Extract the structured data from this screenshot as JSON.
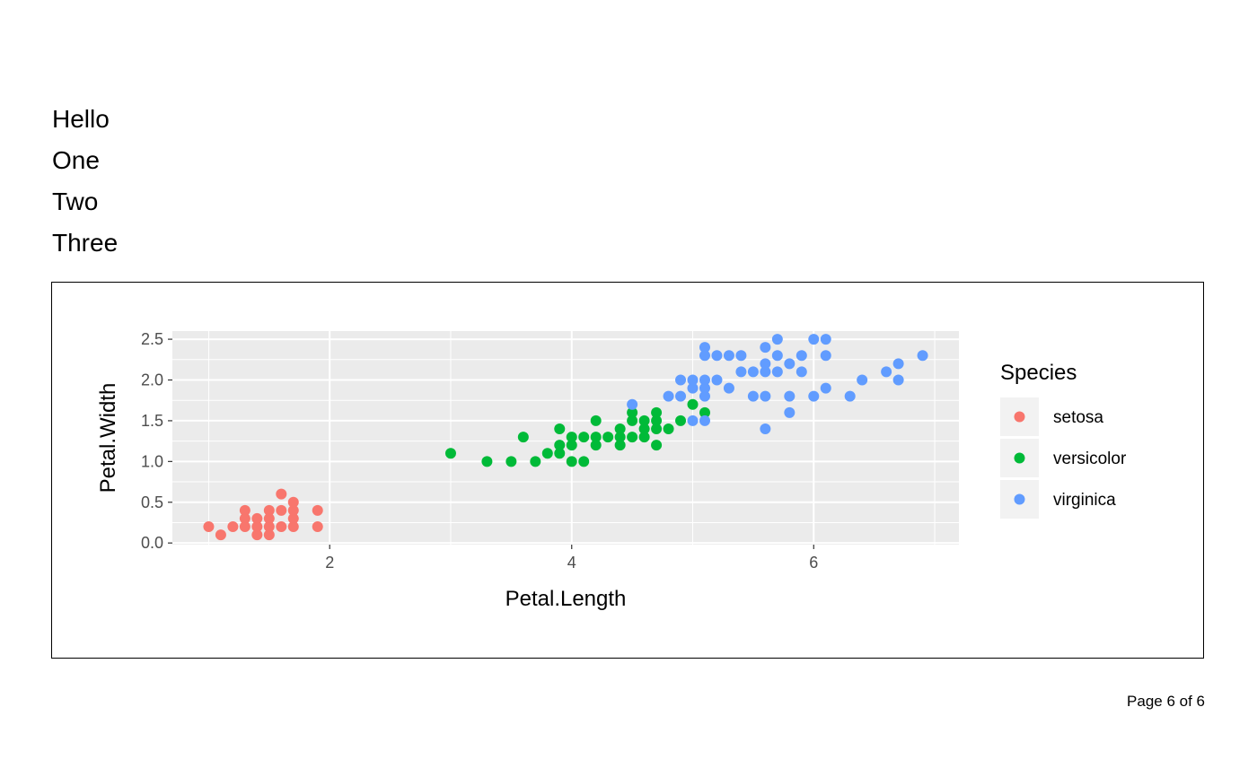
{
  "text_lines": [
    "Hello",
    "One",
    "Two",
    "Three"
  ],
  "footer": {
    "page_label": "Page 6 of 6"
  },
  "chart_data": {
    "type": "scatter",
    "xlabel": "Petal.Length",
    "ylabel": "Petal.Width",
    "xlim": [
      0.7,
      7.2
    ],
    "ylim": [
      -0.02,
      2.6
    ],
    "x_ticks": [
      2,
      4,
      6
    ],
    "y_ticks": [
      0.0,
      0.5,
      1.0,
      1.5,
      2.0,
      2.5
    ],
    "x_tick_labels": [
      "2",
      "4",
      "6"
    ],
    "y_tick_labels": [
      "0.0",
      "0.5",
      "1.0",
      "1.5",
      "2.0",
      "2.5"
    ],
    "grid": true,
    "legend_title": "Species",
    "legend_position": "right",
    "series": [
      {
        "name": "setosa",
        "color": "#F8766D",
        "points": [
          [
            1.0,
            0.2
          ],
          [
            1.1,
            0.1
          ],
          [
            1.2,
            0.2
          ],
          [
            1.3,
            0.2
          ],
          [
            1.3,
            0.3
          ],
          [
            1.3,
            0.4
          ],
          [
            1.4,
            0.1
          ],
          [
            1.4,
            0.2
          ],
          [
            1.4,
            0.3
          ],
          [
            1.5,
            0.1
          ],
          [
            1.5,
            0.2
          ],
          [
            1.5,
            0.3
          ],
          [
            1.5,
            0.4
          ],
          [
            1.6,
            0.2
          ],
          [
            1.6,
            0.4
          ],
          [
            1.6,
            0.6
          ],
          [
            1.7,
            0.2
          ],
          [
            1.7,
            0.3
          ],
          [
            1.7,
            0.4
          ],
          [
            1.7,
            0.5
          ],
          [
            1.9,
            0.2
          ],
          [
            1.9,
            0.4
          ]
        ]
      },
      {
        "name": "versicolor",
        "color": "#00BA38",
        "points": [
          [
            3.0,
            1.1
          ],
          [
            3.3,
            1.0
          ],
          [
            3.5,
            1.0
          ],
          [
            3.6,
            1.3
          ],
          [
            3.7,
            1.0
          ],
          [
            3.8,
            1.1
          ],
          [
            3.9,
            1.1
          ],
          [
            3.9,
            1.2
          ],
          [
            3.9,
            1.4
          ],
          [
            4.0,
            1.0
          ],
          [
            4.0,
            1.2
          ],
          [
            4.0,
            1.3
          ],
          [
            4.1,
            1.0
          ],
          [
            4.1,
            1.3
          ],
          [
            4.2,
            1.2
          ],
          [
            4.2,
            1.3
          ],
          [
            4.2,
            1.5
          ],
          [
            4.3,
            1.3
          ],
          [
            4.4,
            1.2
          ],
          [
            4.4,
            1.3
          ],
          [
            4.4,
            1.4
          ],
          [
            4.5,
            1.3
          ],
          [
            4.5,
            1.5
          ],
          [
            4.5,
            1.6
          ],
          [
            4.6,
            1.3
          ],
          [
            4.6,
            1.4
          ],
          [
            4.6,
            1.5
          ],
          [
            4.7,
            1.2
          ],
          [
            4.7,
            1.4
          ],
          [
            4.7,
            1.5
          ],
          [
            4.7,
            1.6
          ],
          [
            4.8,
            1.4
          ],
          [
            4.9,
            1.5
          ],
          [
            5.0,
            1.7
          ],
          [
            5.1,
            1.6
          ]
        ]
      },
      {
        "name": "virginica",
        "color": "#619CFF",
        "points": [
          [
            4.5,
            1.7
          ],
          [
            4.8,
            1.8
          ],
          [
            4.9,
            1.8
          ],
          [
            4.9,
            2.0
          ],
          [
            5.0,
            1.5
          ],
          [
            5.0,
            1.9
          ],
          [
            5.0,
            2.0
          ],
          [
            5.1,
            1.5
          ],
          [
            5.1,
            1.8
          ],
          [
            5.1,
            1.9
          ],
          [
            5.1,
            2.0
          ],
          [
            5.1,
            2.3
          ],
          [
            5.1,
            2.4
          ],
          [
            5.2,
            2.0
          ],
          [
            5.2,
            2.3
          ],
          [
            5.3,
            1.9
          ],
          [
            5.3,
            2.3
          ],
          [
            5.4,
            2.1
          ],
          [
            5.4,
            2.3
          ],
          [
            5.5,
            1.8
          ],
          [
            5.5,
            2.1
          ],
          [
            5.6,
            1.4
          ],
          [
            5.6,
            1.8
          ],
          [
            5.6,
            2.1
          ],
          [
            5.6,
            2.2
          ],
          [
            5.6,
            2.4
          ],
          [
            5.7,
            2.1
          ],
          [
            5.7,
            2.3
          ],
          [
            5.7,
            2.5
          ],
          [
            5.8,
            1.6
          ],
          [
            5.8,
            1.8
          ],
          [
            5.8,
            2.2
          ],
          [
            5.9,
            2.1
          ],
          [
            5.9,
            2.3
          ],
          [
            6.0,
            1.8
          ],
          [
            6.0,
            2.5
          ],
          [
            6.1,
            1.9
          ],
          [
            6.1,
            2.3
          ],
          [
            6.1,
            2.5
          ],
          [
            6.3,
            1.8
          ],
          [
            6.4,
            2.0
          ],
          [
            6.6,
            2.1
          ],
          [
            6.7,
            2.0
          ],
          [
            6.7,
            2.2
          ],
          [
            6.9,
            2.3
          ]
        ]
      }
    ]
  }
}
